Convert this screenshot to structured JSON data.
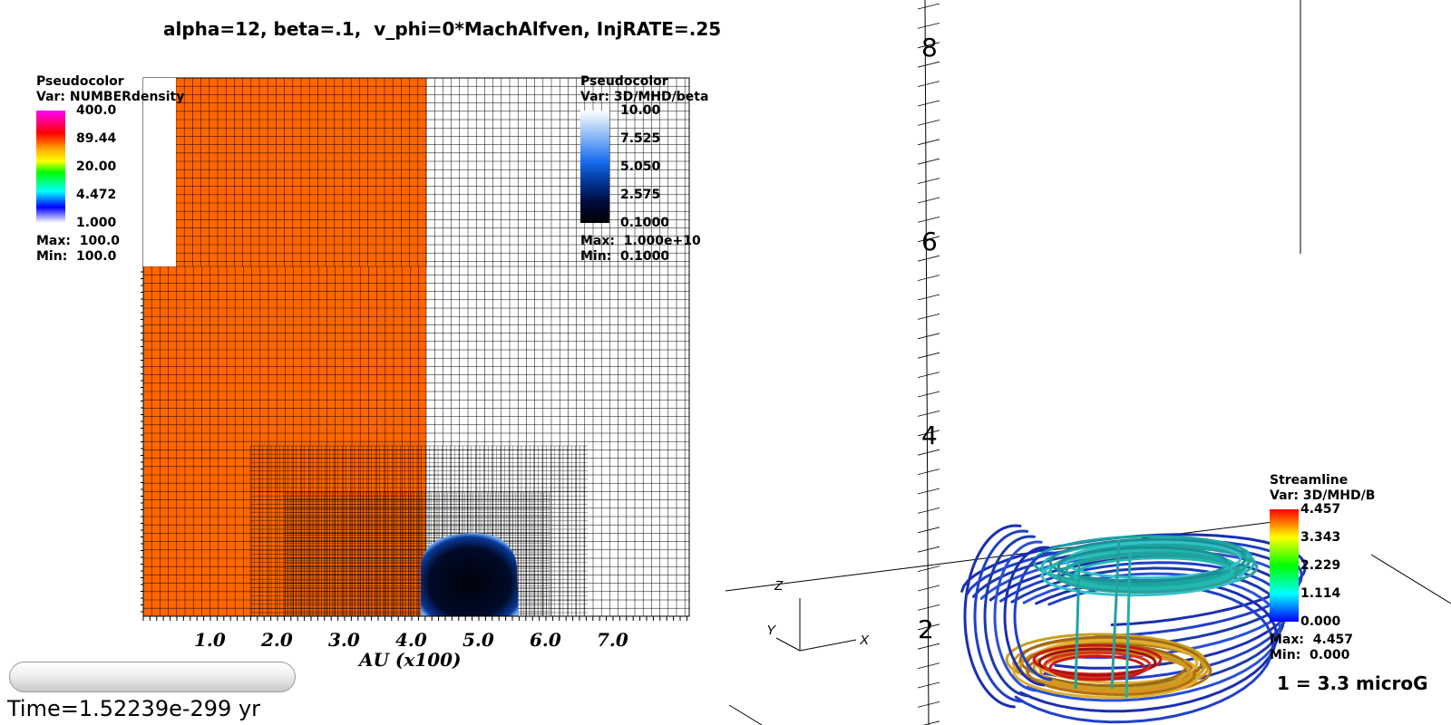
{
  "title": "alpha=12, beta=.1,  v_phi=0*MachAlfven, InjRATE=.25",
  "legend_left": {
    "heading": "Pseudocolor",
    "var": "Var: NUMBERdensity",
    "ticks": [
      "400.0",
      "89.44",
      "20.00",
      "4.472",
      "1.000"
    ],
    "max": "Max:  100.0",
    "min": "Min:  100.0"
  },
  "legend_right": {
    "heading": "Pseudocolor",
    "var": "Var: 3D/MHD/beta",
    "ticks": [
      "10.00",
      "7.525",
      "5.050",
      "2.575",
      "0.1000"
    ],
    "max": "Max:  1.000e+10",
    "min": "Min:  0.1000"
  },
  "legend_stream": {
    "heading": "Streamline",
    "var": "Var: 3D/MHD/B",
    "ticks": [
      "4.457",
      "3.343",
      "2.229",
      "1.114",
      "0.000"
    ],
    "max": "Max:  4.457",
    "min": "Min:  0.000"
  },
  "x_axis": {
    "ticks": [
      "1.0",
      "2.0",
      "3.0",
      "4.0",
      "5.0",
      "6.0",
      "7.0"
    ],
    "label": "AU (x100)"
  },
  "axis3d": {
    "z_ticks": [
      "8",
      "6",
      "4",
      "2"
    ],
    "triad": {
      "x": "X",
      "y": "Y",
      "z": "Z"
    }
  },
  "scale_note": "1 = 3.3 microG",
  "time": "Time=1.52239e-299 yr",
  "colors": {
    "density_fill": "#ff6600",
    "grid_line": "#000000",
    "bubble": "#000514"
  }
}
